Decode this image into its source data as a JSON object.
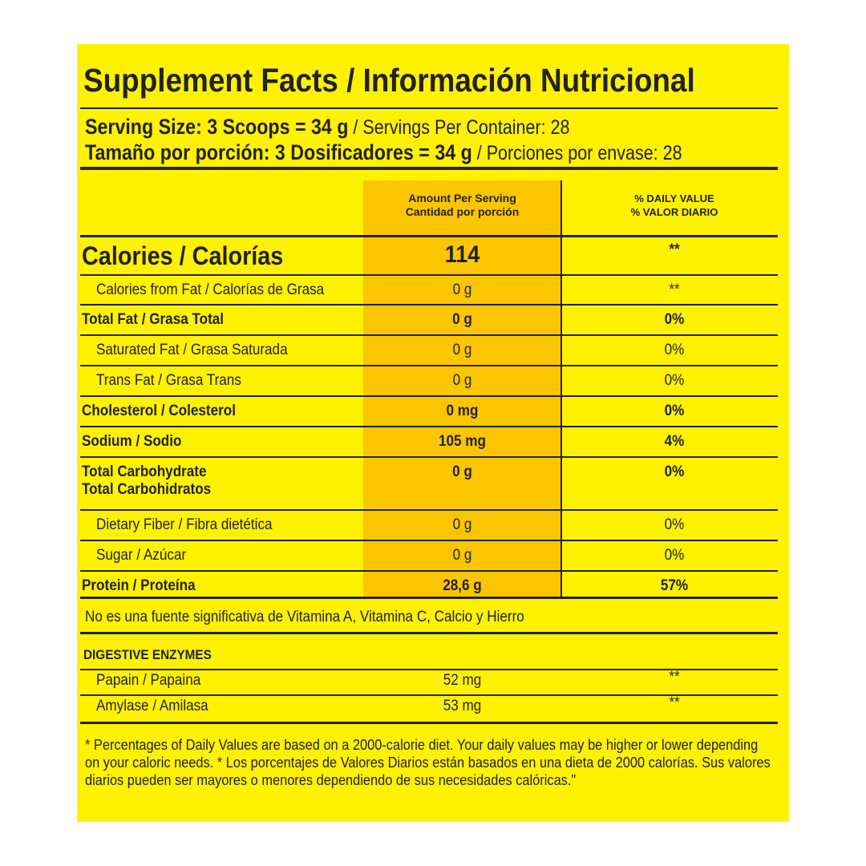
{
  "title": "Supplement Facts / Información Nutricional",
  "serving": [
    {
      "bold": "Serving Size: 3 Scoops = 34 g",
      "normal": "/ Servings Per Container: 28"
    },
    {
      "bold": "Tamaño por porción: 3 Dosificadores = 34 g",
      "normal": "/ Porciones por envase: 28"
    }
  ],
  "table": {
    "amount_header": [
      "Amount Per Serving",
      "Cantidad por porción"
    ],
    "daily_value_header": [
      "% DAILY VALUE",
      "% VALOR DIARIO"
    ],
    "rows": [
      {
        "label": [
          "Calories / Calorías"
        ],
        "amount": "114",
        "daily_value": "**"
      },
      {
        "label": [
          "Calories from Fat / Calorías de Grasa"
        ],
        "amount": "0 g",
        "daily_value": "**"
      },
      {
        "label": [
          "Total Fat / Grasa Total"
        ],
        "amount": "0 g",
        "daily_value": "0%"
      },
      {
        "label": [
          "Saturated Fat / Grasa Saturada"
        ],
        "amount": "0 g",
        "daily_value": "0%"
      },
      {
        "label": [
          "Trans Fat / Grasa Trans"
        ],
        "amount": "0 g",
        "daily_value": "0%"
      },
      {
        "label": [
          "Cholesterol / Colesterol"
        ],
        "amount": "0 mg",
        "daily_value": "0%"
      },
      {
        "label": [
          "Sodium / Sodio"
        ],
        "amount": "105 mg",
        "daily_value": "4%"
      },
      {
        "label": [
          "Total Carbohydrate",
          "Total Carbohidratos"
        ],
        "amount": "0 g",
        "daily_value": "0%"
      },
      {
        "label": [
          "Dietary Fiber / Fibra dietética"
        ],
        "amount": "0 g",
        "daily_value": "0%"
      },
      {
        "label": [
          "Sugar / Azúcar"
        ],
        "amount": "0 g",
        "daily_value": "0%"
      },
      {
        "label": [
          "Protein / Proteína"
        ],
        "amount": "28,6 g",
        "daily_value": "57%"
      }
    ]
  },
  "note": "No es una fuente significativa de Vitamina A, Vitamina C, Calcio y Hierro",
  "enzymes": {
    "heading": "DIGESTIVE ENZYMES",
    "items": [
      {
        "name": "Papain / Papaina",
        "amount": "52 mg",
        "daily_value": "**"
      },
      {
        "name": "Amylase / Amilasa",
        "amount": "53 mg",
        "daily_value": "**"
      }
    ]
  },
  "footnote": "* Percentages of Daily Values are based on a 2000-calorie diet. Your daily values may be higher or lower depending on your caloric needs. * Los porcentajes de Valores Diarios están basados en una dieta de 2000 calorías. Sus valores diarios pueden ser mayores o menores dependiendo de sus necesidades calóricas.\""
}
